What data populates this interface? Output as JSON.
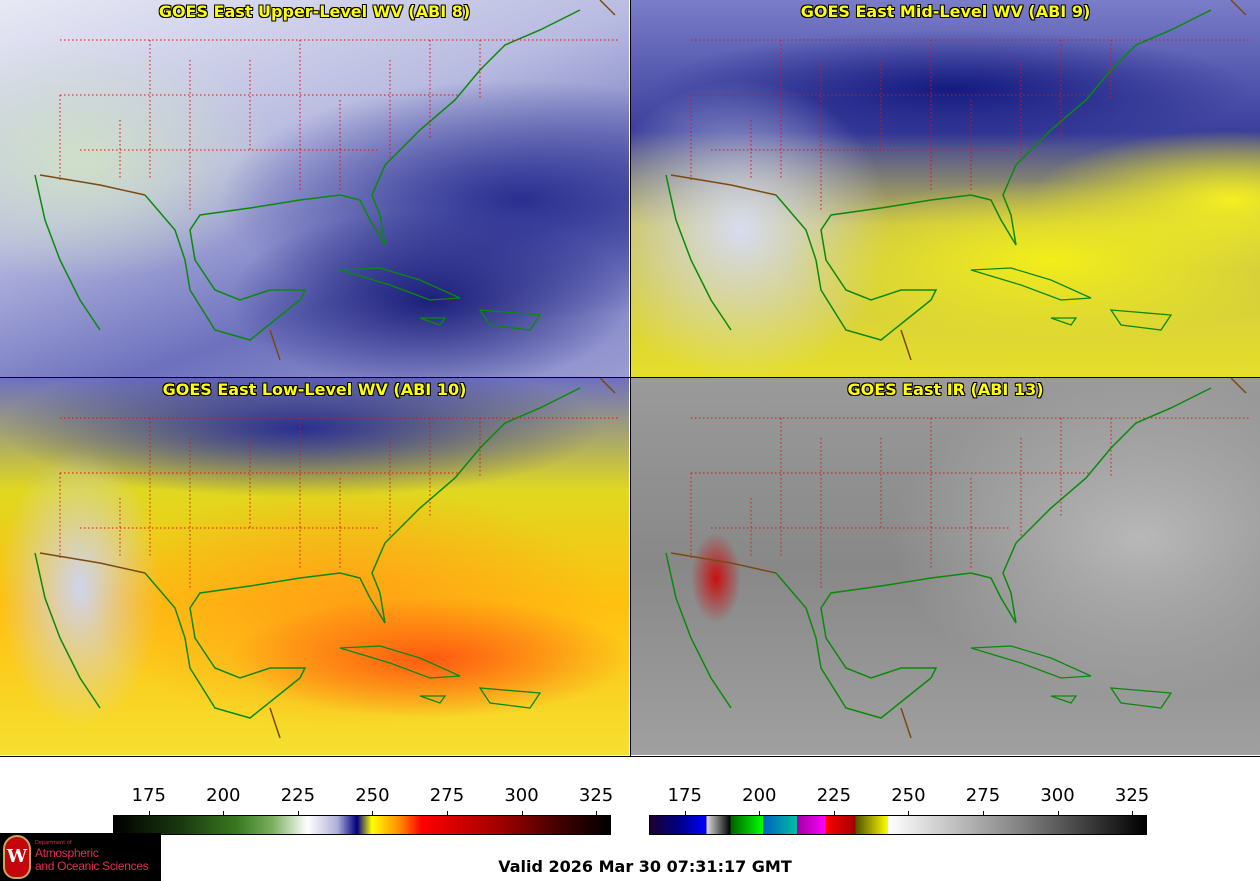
{
  "panels": [
    {
      "title": "GOES East Upper-Level WV (ABI 8)"
    },
    {
      "title": "GOES East Mid-Level WV (ABI 9)"
    },
    {
      "title": "GOES East Low-Level WV (ABI 10)"
    },
    {
      "title": "GOES East IR (ABI 13)"
    }
  ],
  "colorbars": [
    {
      "name": "water vapor",
      "range_K": [
        163,
        330
      ],
      "ticks": [
        "175",
        "200",
        "225",
        "250",
        "275",
        "300",
        "325"
      ]
    },
    {
      "name": "infrared",
      "range_K": [
        163,
        330
      ],
      "ticks": [
        "175",
        "200",
        "225",
        "250",
        "275",
        "300",
        "325"
      ]
    }
  ],
  "logo": {
    "dept": "Department of",
    "line1": "Atmospheric",
    "line2": "and Oceanic Sciences",
    "seal": "W"
  },
  "valid_time": "Valid 2026 Mar 30 07:31:17 GMT",
  "colors": {
    "title": "#ffff00",
    "coast": "#0a8a0a",
    "state_border": "#e01010",
    "country_border": "#7a4a10"
  }
}
